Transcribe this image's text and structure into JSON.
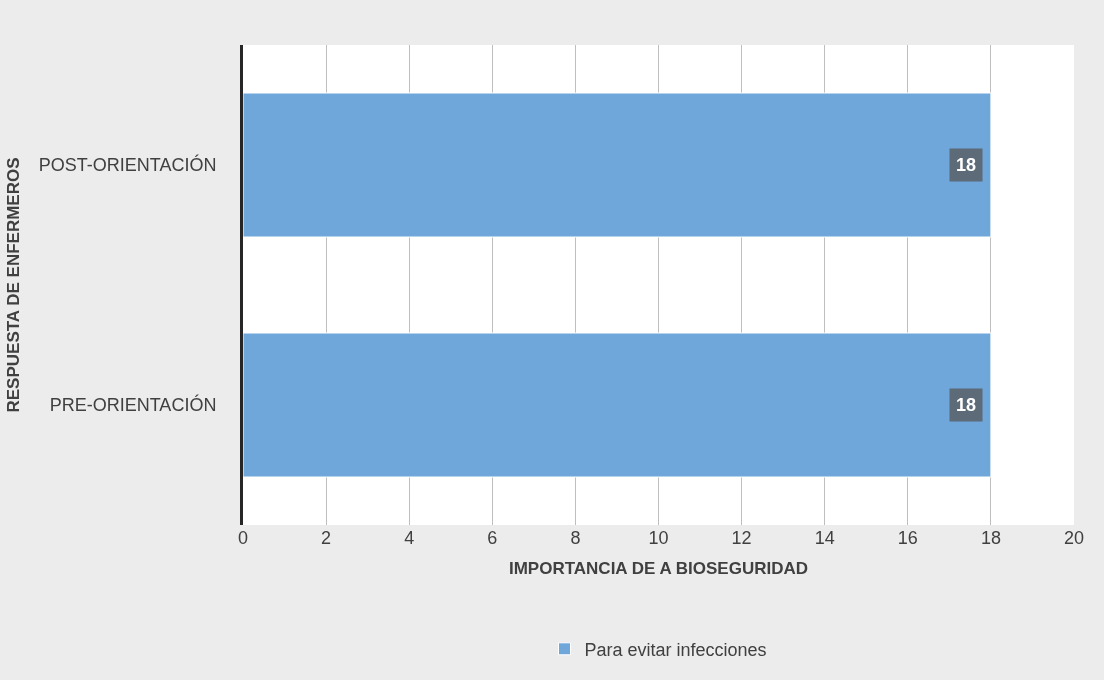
{
  "chart_data": {
    "type": "bar",
    "orientation": "horizontal",
    "categories": [
      "POST-ORIENTACIÓN",
      "PRE-ORIENTACIÓN"
    ],
    "series": [
      {
        "name": "Para evitar infecciones",
        "color": "#6fa7da",
        "values": [
          18,
          18
        ]
      }
    ],
    "xlabel": "IMPORTANCIA DE A BIOSEGURIDAD",
    "ylabel": "RESPUESTA DE ENFERMEROS",
    "xlim": [
      0,
      20
    ],
    "xticks": [
      0,
      2,
      4,
      6,
      8,
      10,
      12,
      14,
      16,
      18,
      20
    ],
    "grid": "x",
    "legend": "bottom",
    "data_labels": true
  }
}
